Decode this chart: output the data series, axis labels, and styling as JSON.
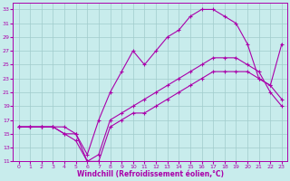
{
  "xlabel": "Windchill (Refroidissement éolien,°C)",
  "xlim": [
    -0.5,
    23.5
  ],
  "ylim": [
    11,
    34
  ],
  "xticks": [
    0,
    1,
    2,
    3,
    4,
    5,
    6,
    7,
    8,
    9,
    10,
    11,
    12,
    13,
    14,
    15,
    16,
    17,
    18,
    19,
    20,
    21,
    22,
    23
  ],
  "yticks": [
    11,
    13,
    15,
    17,
    19,
    21,
    23,
    25,
    27,
    29,
    31,
    33
  ],
  "bg_color": "#c8ecec",
  "line_color": "#aa00aa",
  "grid_color": "#a0cccc",
  "line1_x": [
    0,
    1,
    2,
    3,
    4,
    5,
    6,
    7,
    8,
    9,
    10,
    11,
    12,
    13,
    14,
    15,
    16,
    17,
    18,
    19,
    20,
    21,
    22,
    23
  ],
  "line1_y": [
    16,
    16,
    16,
    16,
    16,
    15,
    12,
    17,
    21,
    24,
    27,
    25,
    27,
    29,
    30,
    32,
    33,
    33,
    32,
    31,
    28,
    23,
    22,
    28
  ],
  "line2_x": [
    0,
    1,
    2,
    3,
    4,
    5,
    6,
    7,
    8,
    9,
    10,
    11,
    12,
    13,
    14,
    15,
    16,
    17,
    18,
    19,
    20,
    21,
    22,
    23
  ],
  "line2_y": [
    16,
    16,
    16,
    16,
    15,
    14,
    11,
    11,
    16,
    17,
    18,
    18,
    19,
    20,
    21,
    22,
    23,
    24,
    24,
    24,
    24,
    23,
    22,
    20
  ],
  "line3_x": [
    0,
    1,
    2,
    3,
    4,
    5,
    6,
    7,
    8,
    9,
    10,
    11,
    12,
    13,
    14,
    15,
    16,
    17,
    18,
    19,
    20,
    21,
    22,
    23
  ],
  "line3_y": [
    16,
    16,
    16,
    16,
    15,
    15,
    11,
    12,
    17,
    18,
    19,
    20,
    21,
    22,
    23,
    24,
    25,
    26,
    26,
    26,
    25,
    24,
    21,
    19
  ]
}
